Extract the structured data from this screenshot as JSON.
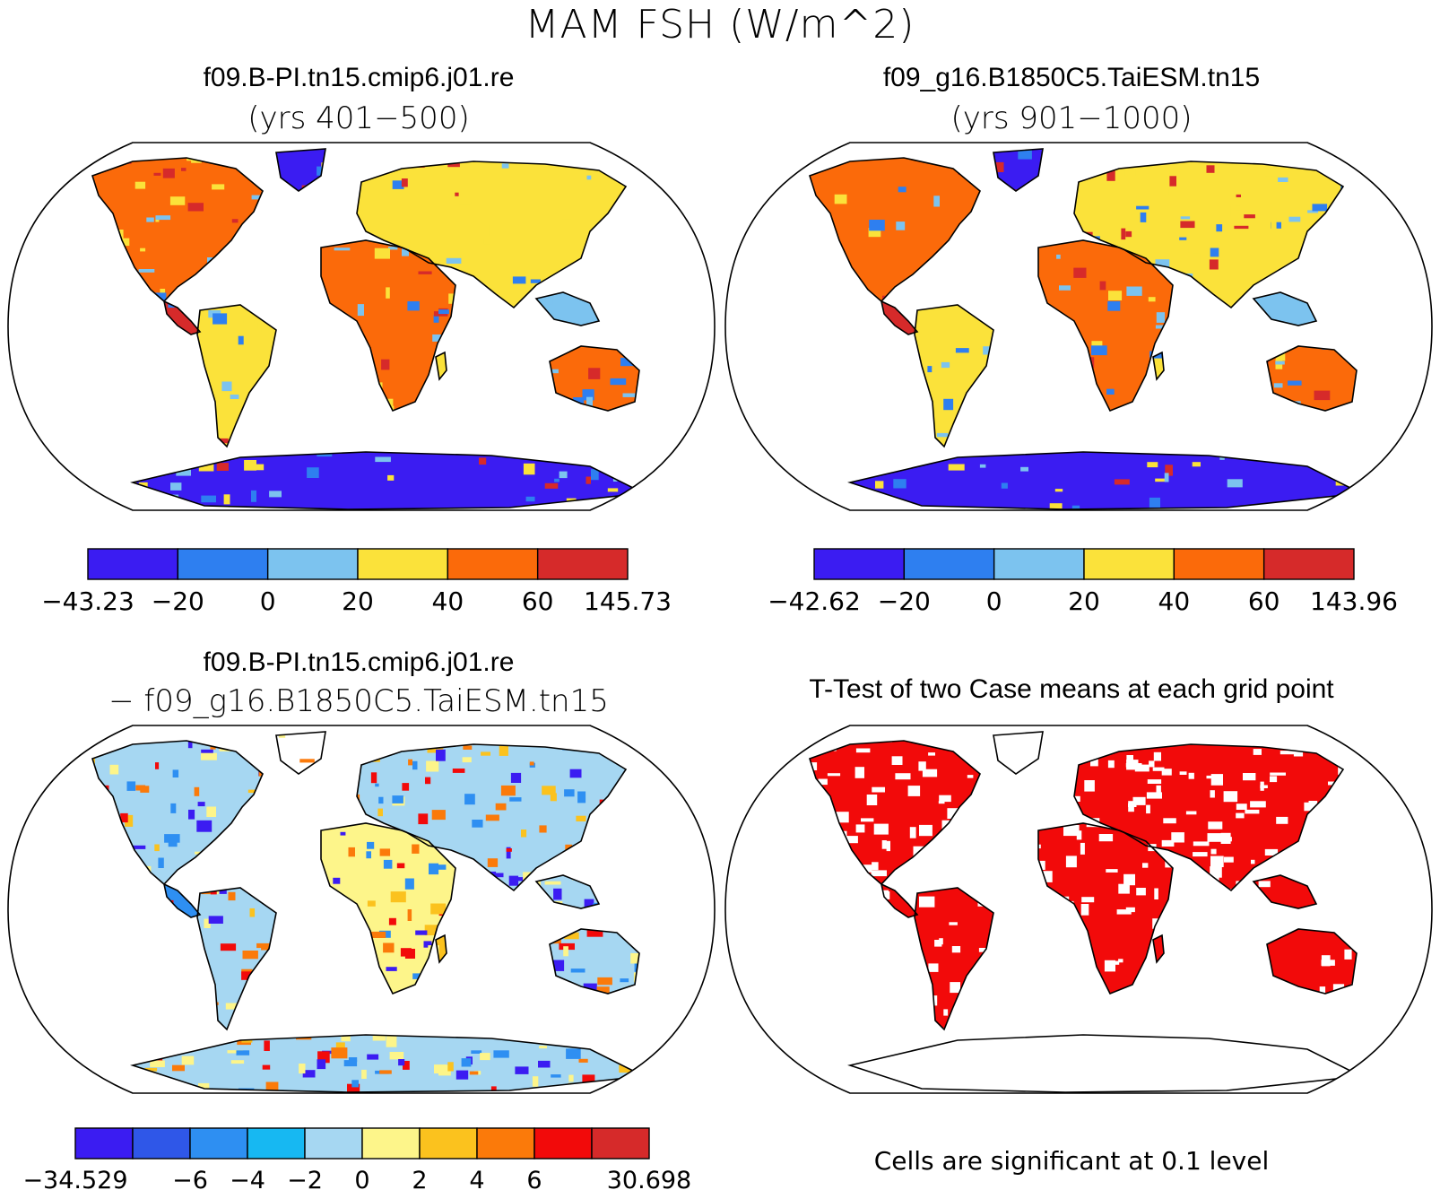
{
  "title": "MAM FSH (W/m^2)",
  "panels": [
    {
      "id": "case1",
      "title": "f09.B-PI.tn15.cmip6.j01.re",
      "subtitle": "(yrs 401−500)",
      "colorbar": {
        "colors": [
          "#3b1cf2",
          "#2e7ff0",
          "#7cc3ef",
          "#fbe23a",
          "#fb6a0a",
          "#d62a2a"
        ],
        "labels": [
          "−43.23",
          "−20",
          "0",
          "20",
          "40",
          "60",
          "145.73"
        ]
      }
    },
    {
      "id": "case2",
      "title": "f09_g16.B1850C5.TaiESM.tn15",
      "subtitle": "(yrs 901−1000)",
      "colorbar": {
        "colors": [
          "#3b1cf2",
          "#2e7ff0",
          "#7cc3ef",
          "#fbe23a",
          "#fb6a0a",
          "#d62a2a"
        ],
        "labels": [
          "−42.62",
          "−20",
          "0",
          "20",
          "40",
          "60",
          "143.96"
        ]
      }
    },
    {
      "id": "difference",
      "title": "f09.B-PI.tn15.cmip6.j01.re",
      "subtitle": "− f09_g16.B1850C5.TaiESM.tn15",
      "colorbar": {
        "colors": [
          "#3b1cf2",
          "#2f57e8",
          "#2e8ff2",
          "#17b8f2",
          "#a6d7f2",
          "#fdf58a",
          "#fbc21e",
          "#fb7a0a",
          "#f20a0a",
          "#d62a2a"
        ],
        "labels": [
          "−34.529",
          "",
          "−6",
          "−4",
          "−2",
          "0",
          "2",
          "4",
          "6",
          "",
          "30.698"
        ]
      }
    },
    {
      "id": "ttest",
      "title": "T-Test of two Case means at each grid point",
      "subtitle": "",
      "footnote": "Cells are significant at 0.1 level",
      "colorbar": null
    }
  ]
}
